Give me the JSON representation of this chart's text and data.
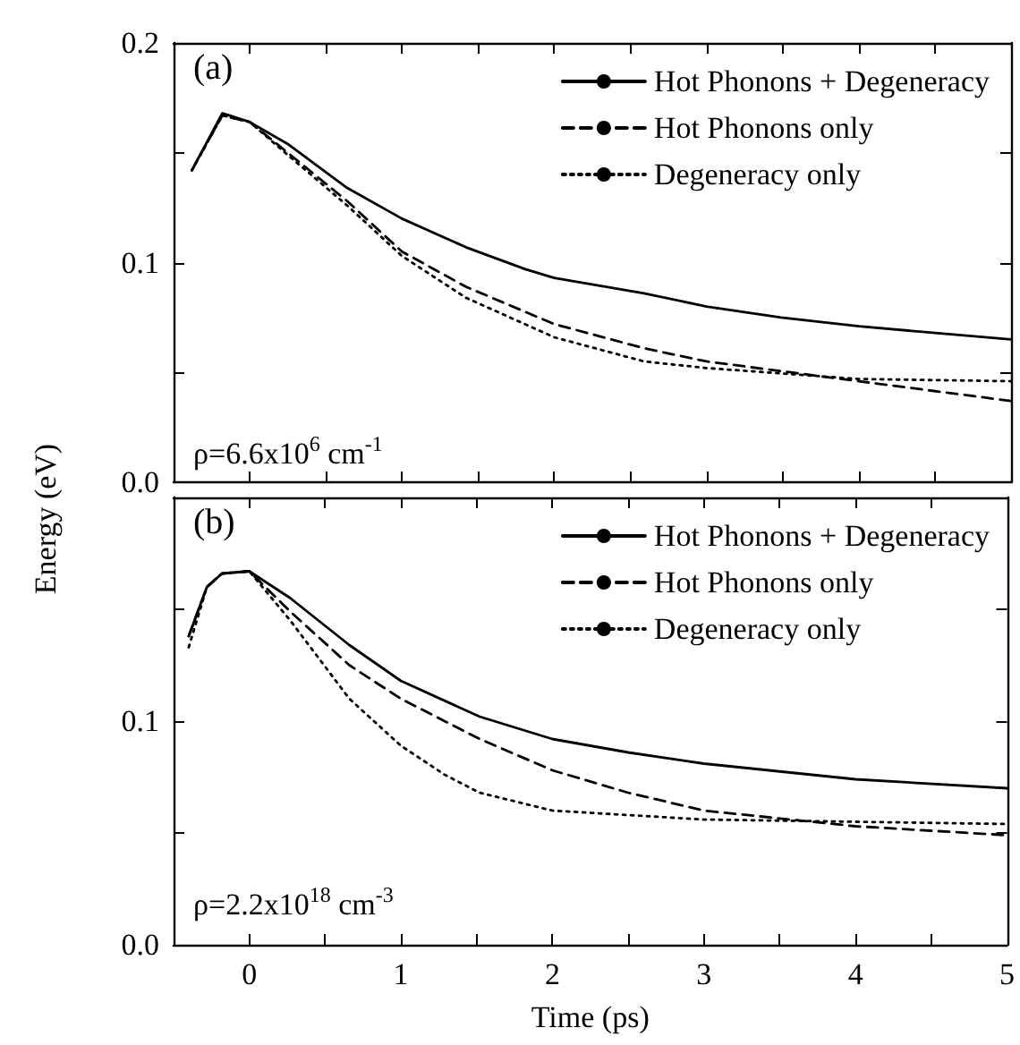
{
  "chart_data": [
    {
      "type": "line",
      "ylabel": "Energy (eV)",
      "annotations": [
        "(a)",
        "ρ=6.6x10$^{6}$ cm$^{-1}$"
      ],
      "legend": "top right",
      "tick_labels": "y",
      "grid": false,
      "marker": "none",
      "xlim": [
        -0.5,
        5
      ],
      "xticks": [
        0,
        {
          "value": 0.5,
          "label": null
        },
        1,
        {
          "value": 1.5,
          "label": null
        },
        2,
        {
          "value": 2.5,
          "label": null
        },
        3,
        {
          "value": 3.5,
          "label": null
        },
        4,
        {
          "value": 4.5,
          "label": null
        },
        5
      ],
      "ylim": [
        0,
        0.2
      ],
      "yticks": [
        {
          "value": 0,
          "label": "0.0"
        },
        {
          "value": 0.05,
          "label": null
        },
        {
          "value": 0.1,
          "label": "0.1"
        },
        {
          "value": 0.15,
          "label": null
        },
        {
          "value": 0.2,
          "label": "0.2"
        }
      ],
      "series": [
        {
          "name": "Hot Phonons + Degeneracy",
          "color": "#000000",
          "line_style": "solid",
          "x": [
            -0.38,
            -0.18,
            0,
            0.25,
            0.64,
            1,
            1.42,
            1.81,
            2,
            2.59,
            3,
            3.49,
            4,
            5
          ],
          "values": [
            0.142,
            0.168,
            0.164,
            0.154,
            0.134,
            0.12,
            0.107,
            0.097,
            0.093,
            0.086,
            0.08,
            0.075,
            0.071,
            0.065
          ]
        },
        {
          "name": "Hot Phonons only",
          "color": "#000000",
          "line_style": "dashed",
          "x": [
            -0.38,
            -0.18,
            0,
            0.25,
            0.64,
            1,
            1.42,
            2,
            2.59,
            3,
            4,
            5
          ],
          "values": [
            0.142,
            0.167,
            0.164,
            0.15,
            0.128,
            0.105,
            0.089,
            0.072,
            0.061,
            0.055,
            0.046,
            0.037
          ]
        },
        {
          "name": "Degeneracy only",
          "color": "#000000",
          "line_style": "dotted",
          "x": [
            -0.38,
            -0.18,
            0,
            0.25,
            0.64,
            1,
            1.42,
            2,
            2.59,
            3,
            4,
            5
          ],
          "values": [
            0.142,
            0.167,
            0.164,
            0.149,
            0.126,
            0.103,
            0.084,
            0.066,
            0.055,
            0.052,
            0.047,
            0.046
          ]
        }
      ]
    },
    {
      "type": "line",
      "xlabel": "Time (ps)",
      "annotations": [
        "(b)",
        "ρ=2.2x10$^{18}$ cm$^{-3}$"
      ],
      "legend": "top right",
      "grid": false,
      "marker": "none",
      "xlim": [
        -0.5,
        5
      ],
      "xticks": [
        0,
        {
          "value": 0.5,
          "label": null
        },
        1,
        {
          "value": 1.5,
          "label": null
        },
        2,
        {
          "value": 2.5,
          "label": null
        },
        3,
        {
          "value": 3.5,
          "label": null
        },
        4,
        {
          "value": 4.5,
          "label": null
        },
        5
      ],
      "ylim": [
        0,
        0.2
      ],
      "yticks": [
        {
          "value": 0,
          "label": "0.0"
        },
        {
          "value": 0.05,
          "label": null
        },
        {
          "value": 0.1,
          "label": "0.1"
        },
        {
          "value": 0.15,
          "label": null
        },
        {
          "value": 0.2,
          "label": null
        }
      ],
      "series": [
        {
          "name": "Hot Phonons + Degeneracy",
          "color": "#000000",
          "line_style": "solid",
          "x": [
            -0.4,
            -0.28,
            -0.18,
            0,
            0.27,
            0.66,
            1,
            1.52,
            2,
            2.5,
            3,
            4,
            5
          ],
          "values": [
            0.138,
            0.16,
            0.166,
            0.167,
            0.155,
            0.134,
            0.118,
            0.102,
            0.092,
            0.086,
            0.081,
            0.074,
            0.07
          ]
        },
        {
          "name": "Hot Phonons only",
          "color": "#000000",
          "line_style": "dashed",
          "x": [
            -0.4,
            -0.28,
            -0.18,
            0,
            0.27,
            0.66,
            1,
            1.52,
            2,
            2.5,
            3,
            4,
            5
          ],
          "values": [
            0.138,
            0.16,
            0.166,
            0.167,
            0.149,
            0.125,
            0.11,
            0.092,
            0.078,
            0.068,
            0.06,
            0.053,
            0.049
          ]
        },
        {
          "name": "Degeneracy only",
          "color": "#000000",
          "line_style": "dotted",
          "x": [
            -0.4,
            -0.28,
            -0.18,
            0,
            0.27,
            0.66,
            1,
            1.29,
            1.52,
            2,
            2.5,
            3,
            4,
            5
          ],
          "values": [
            0.133,
            0.16,
            0.166,
            0.167,
            0.145,
            0.11,
            0.089,
            0.076,
            0.068,
            0.06,
            0.058,
            0.056,
            0.055,
            0.054
          ]
        }
      ]
    }
  ]
}
